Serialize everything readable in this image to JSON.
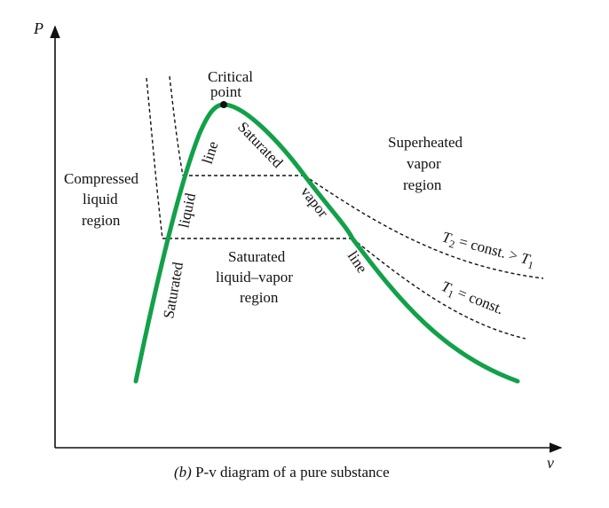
{
  "axes": {
    "y_label": "P",
    "x_label": "v"
  },
  "critical_point": {
    "line1": "Critical",
    "line2": "point"
  },
  "regions": {
    "compressed": [
      "Compressed",
      "liquid",
      "region"
    ],
    "superheated": [
      "Superheated",
      "vapor",
      "region"
    ],
    "mixture": [
      "Saturated",
      "liquid–vapor",
      "region"
    ]
  },
  "saturated_liquid_line": {
    "word1": "Saturated",
    "word2": "liquid",
    "word3": "line"
  },
  "saturated_vapor_line": {
    "word1": "Saturated",
    "word2": "vapor",
    "word3": "line"
  },
  "isotherms": {
    "t2": {
      "T": "T",
      "sub": "2",
      "mid": " = const. > ",
      "T2": "T",
      "sub2": "1"
    },
    "t1": {
      "T": "T",
      "sub": "1",
      "mid": " = const."
    }
  },
  "caption": {
    "prefix": "(b) ",
    "title": "P-v diagram of a pure substance"
  },
  "colors": {
    "dome": "#12a149",
    "ink": "#111111"
  }
}
